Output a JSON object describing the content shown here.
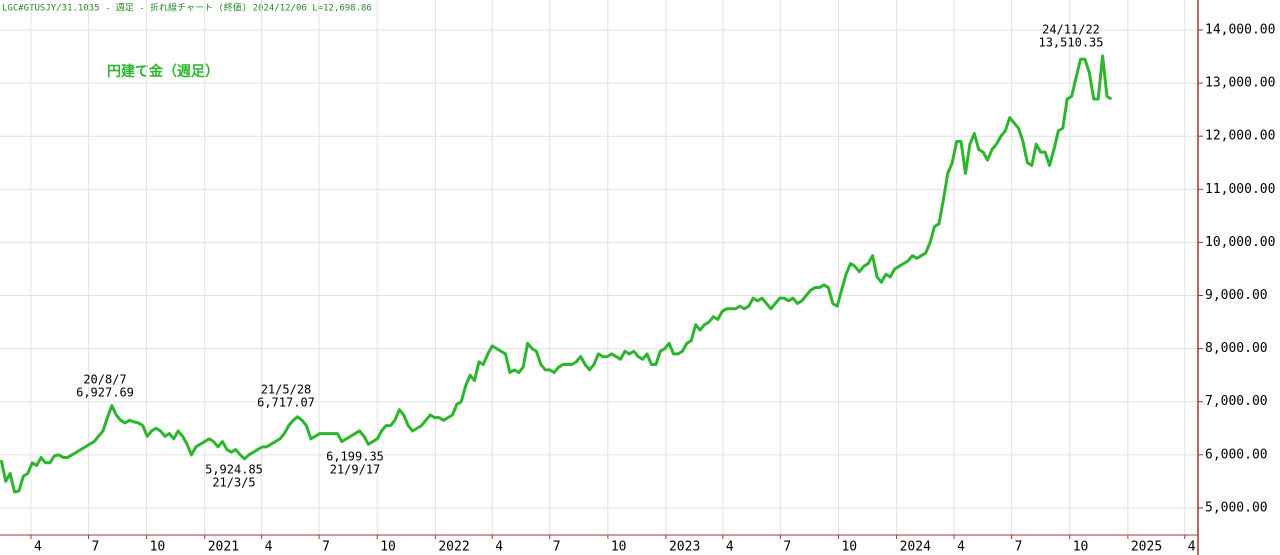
{
  "chart_data": {
    "type": "line",
    "header": "LGC#GTUSJY/31.1035 - 週足 - 折れ線チャート (終値)  2024/12/06 L=12,698.86",
    "title": "円建て金（週足）",
    "annotations": [
      {
        "date": "20/8/7",
        "value": "6,927.69"
      },
      {
        "date": "21/5/28",
        "value": "6,717.07"
      },
      {
        "date": "21/3/5",
        "value": "5,924.85"
      },
      {
        "date": "21/9/17",
        "value": "6,199.35"
      },
      {
        "date": "24/11/22",
        "value": "13,510.35"
      }
    ],
    "x": [
      "2020-02-14",
      "2020-02-21",
      "2020-02-28",
      "2020-03-06",
      "2020-03-13",
      "2020-03-20",
      "2020-03-27",
      "2020-04-03",
      "2020-04-10",
      "2020-04-17",
      "2020-04-24",
      "2020-05-01",
      "2020-05-08",
      "2020-05-15",
      "2020-05-22",
      "2020-05-29",
      "2020-06-05",
      "2020-06-12",
      "2020-06-19",
      "2020-06-26",
      "2020-07-03",
      "2020-07-10",
      "2020-07-17",
      "2020-07-24",
      "2020-07-31",
      "2020-08-07",
      "2020-08-14",
      "2020-08-21",
      "2020-08-28",
      "2020-09-04",
      "2020-09-11",
      "2020-09-18",
      "2020-09-25",
      "2020-10-02",
      "2020-10-09",
      "2020-10-16",
      "2020-10-23",
      "2020-10-30",
      "2020-11-06",
      "2020-11-13",
      "2020-11-20",
      "2020-11-27",
      "2020-12-04",
      "2020-12-11",
      "2020-12-18",
      "2020-12-25",
      "2021-01-01",
      "2021-01-08",
      "2021-01-15",
      "2021-01-22",
      "2021-01-29",
      "2021-02-05",
      "2021-02-12",
      "2021-02-19",
      "2021-02-26",
      "2021-03-05",
      "2021-03-12",
      "2021-03-19",
      "2021-03-26",
      "2021-04-02",
      "2021-04-09",
      "2021-04-16",
      "2021-04-23",
      "2021-04-30",
      "2021-05-07",
      "2021-05-14",
      "2021-05-21",
      "2021-05-28",
      "2021-06-04",
      "2021-06-11",
      "2021-06-18",
      "2021-06-25",
      "2021-07-02",
      "2021-07-09",
      "2021-07-16",
      "2021-07-23",
      "2021-07-30",
      "2021-08-06",
      "2021-08-13",
      "2021-08-20",
      "2021-08-27",
      "2021-09-03",
      "2021-09-10",
      "2021-09-17",
      "2021-09-24",
      "2021-10-01",
      "2021-10-08",
      "2021-10-15",
      "2021-10-22",
      "2021-10-29",
      "2021-11-05",
      "2021-11-12",
      "2021-11-19",
      "2021-11-26",
      "2021-12-03",
      "2021-12-10",
      "2021-12-17",
      "2021-12-24",
      "2021-12-31",
      "2022-01-07",
      "2022-01-14",
      "2022-01-21",
      "2022-01-28",
      "2022-02-04",
      "2022-02-11",
      "2022-02-18",
      "2022-02-25",
      "2022-03-04",
      "2022-03-11",
      "2022-03-18",
      "2022-03-25",
      "2022-04-01",
      "2022-04-08",
      "2022-04-15",
      "2022-04-22",
      "2022-04-29",
      "2022-05-06",
      "2022-05-13",
      "2022-05-20",
      "2022-05-27",
      "2022-06-03",
      "2022-06-10",
      "2022-06-17",
      "2022-06-24",
      "2022-07-01",
      "2022-07-08",
      "2022-07-15",
      "2022-07-22",
      "2022-07-29",
      "2022-08-05",
      "2022-08-12",
      "2022-08-19",
      "2022-08-26",
      "2022-09-02",
      "2022-09-09",
      "2022-09-16",
      "2022-09-23",
      "2022-09-30",
      "2022-10-07",
      "2022-10-14",
      "2022-10-21",
      "2022-10-28",
      "2022-11-04",
      "2022-11-11",
      "2022-11-18",
      "2022-11-25",
      "2022-12-02",
      "2022-12-09",
      "2022-12-16",
      "2022-12-23",
      "2022-12-30",
      "2023-01-06",
      "2023-01-13",
      "2023-01-20",
      "2023-01-27",
      "2023-02-03",
      "2023-02-10",
      "2023-02-17",
      "2023-02-24",
      "2023-03-03",
      "2023-03-10",
      "2023-03-17",
      "2023-03-24",
      "2023-03-31",
      "2023-04-07",
      "2023-04-14",
      "2023-04-21",
      "2023-04-28",
      "2023-05-05",
      "2023-05-12",
      "2023-05-19",
      "2023-05-26",
      "2023-06-02",
      "2023-06-09",
      "2023-06-16",
      "2023-06-23",
      "2023-06-30",
      "2023-07-07",
      "2023-07-14",
      "2023-07-21",
      "2023-07-28",
      "2023-08-04",
      "2023-08-11",
      "2023-08-18",
      "2023-08-25",
      "2023-09-01",
      "2023-09-08",
      "2023-09-15",
      "2023-09-22",
      "2023-09-29",
      "2023-10-06",
      "2023-10-13",
      "2023-10-20",
      "2023-10-27",
      "2023-11-03",
      "2023-11-10",
      "2023-11-17",
      "2023-11-24",
      "2023-12-01",
      "2023-12-08",
      "2023-12-15",
      "2023-12-22",
      "2023-12-29",
      "2024-01-05",
      "2024-01-12",
      "2024-01-19",
      "2024-01-26",
      "2024-02-02",
      "2024-02-09",
      "2024-02-16",
      "2024-02-23",
      "2024-03-01",
      "2024-03-08",
      "2024-03-15",
      "2024-03-22",
      "2024-03-29",
      "2024-04-05",
      "2024-04-12",
      "2024-04-19",
      "2024-04-26",
      "2024-05-03",
      "2024-05-10",
      "2024-05-17",
      "2024-05-24",
      "2024-05-31",
      "2024-06-07",
      "2024-06-14",
      "2024-06-21",
      "2024-06-28",
      "2024-07-05",
      "2024-07-12",
      "2024-07-19",
      "2024-07-26",
      "2024-08-02",
      "2024-08-09",
      "2024-08-16",
      "2024-08-23",
      "2024-08-30",
      "2024-09-06",
      "2024-09-13",
      "2024-09-20",
      "2024-09-27",
      "2024-10-04",
      "2024-10-11",
      "2024-10-18",
      "2024-10-25",
      "2024-11-01",
      "2024-11-08",
      "2024-11-15",
      "2024-11-22",
      "2024-11-29",
      "2024-12-06"
    ],
    "series": [
      {
        "name": "円建て金",
        "color": "#2db52d",
        "values": [
          5900,
          5500,
          5650,
          5300,
          5320,
          5600,
          5650,
          5850,
          5800,
          5950,
          5850,
          5850,
          5980,
          6000,
          5950,
          5950,
          6000,
          6050,
          6100,
          6150,
          6200,
          6250,
          6350,
          6450,
          6700,
          6927.69,
          6750,
          6650,
          6600,
          6650,
          6620,
          6600,
          6550,
          6350,
          6450,
          6500,
          6450,
          6350,
          6400,
          6300,
          6450,
          6350,
          6200,
          6000,
          6150,
          6200,
          6250,
          6300,
          6250,
          6150,
          6250,
          6100,
          6050,
          6100,
          6000,
          5924.85,
          6000,
          6050,
          6100,
          6150,
          6150,
          6200,
          6250,
          6300,
          6400,
          6550,
          6650,
          6717.07,
          6650,
          6550,
          6300,
          6350,
          6400,
          6400,
          6400,
          6400,
          6400,
          6250,
          6300,
          6350,
          6400,
          6450,
          6350,
          6199.35,
          6250,
          6300,
          6450,
          6550,
          6550,
          6650,
          6850,
          6750,
          6550,
          6450,
          6500,
          6550,
          6650,
          6750,
          6700,
          6700,
          6650,
          6700,
          6750,
          6950,
          7000,
          7300,
          7500,
          7400,
          7750,
          7700,
          7900,
          8050,
          8000,
          7950,
          7900,
          7550,
          7600,
          7550,
          7650,
          8100,
          8000,
          7950,
          7700,
          7600,
          7600,
          7550,
          7650,
          7700,
          7700,
          7700,
          7750,
          7850,
          7700,
          7600,
          7700,
          7900,
          7850,
          7850,
          7900,
          7850,
          7800,
          7950,
          7900,
          7950,
          7850,
          7800,
          7900,
          7700,
          7700,
          7950,
          8000,
          8100,
          7900,
          7900,
          7950,
          8100,
          8150,
          8450,
          8350,
          8450,
          8500,
          8600,
          8550,
          8700,
          8750,
          8750,
          8750,
          8800,
          8750,
          8800,
          8950,
          8900,
          8950,
          8850,
          8750,
          8850,
          8950,
          8950,
          8900,
          8950,
          8850,
          8900,
          9000,
          9100,
          9150,
          9150,
          9200,
          9150,
          8850,
          8800,
          9100,
          9400,
          9600,
          9550,
          9450,
          9550,
          9600,
          9750,
          9350,
          9250,
          9400,
          9350,
          9500,
          9550,
          9600,
          9650,
          9750,
          9700,
          9750,
          9800,
          10000,
          10300,
          10350,
          10800,
          11300,
          11500,
          11900,
          11900,
          11300,
          11850,
          12050,
          11750,
          11700,
          11550,
          11750,
          11850,
          12000,
          12100,
          12350,
          12250,
          12150,
          11900,
          11500,
          11450,
          11850,
          11700,
          11700,
          11450,
          11750,
          12100,
          12150,
          12700,
          12750,
          13100,
          13450,
          13450,
          13200,
          12700,
          12700,
          13510.35,
          12750,
          12698.86
        ]
      }
    ],
    "xlim": [
      "2020-02-12",
      "2025-04-22"
    ],
    "xticks": [
      {
        "value": "2020-04-01",
        "label": "4"
      },
      {
        "value": "2020-07-01",
        "label": "7"
      },
      {
        "value": "2020-10-01",
        "label": "10"
      },
      {
        "value": "2021-01-01",
        "label": "2021"
      },
      {
        "value": "2021-04-01",
        "label": "4"
      },
      {
        "value": "2021-07-01",
        "label": "7"
      },
      {
        "value": "2021-10-01",
        "label": "10"
      },
      {
        "value": "2022-01-01",
        "label": "2022"
      },
      {
        "value": "2022-04-01",
        "label": "4"
      },
      {
        "value": "2022-07-01",
        "label": "7"
      },
      {
        "value": "2022-10-01",
        "label": "10"
      },
      {
        "value": "2023-01-01",
        "label": "2023"
      },
      {
        "value": "2023-04-01",
        "label": "4"
      },
      {
        "value": "2023-07-01",
        "label": "7"
      },
      {
        "value": "2023-10-01",
        "label": "10"
      },
      {
        "value": "2024-01-01",
        "label": "2024"
      },
      {
        "value": "2024-04-01",
        "label": "4"
      },
      {
        "value": "2024-07-01",
        "label": "7"
      },
      {
        "value": "2024-10-01",
        "label": "10"
      },
      {
        "value": "2025-01-01",
        "label": "2025"
      },
      {
        "value": "2025-04-01",
        "label": "4"
      }
    ],
    "ylim": [
      4490,
      14565
    ],
    "yticks": [
      {
        "value": 14000,
        "label": "14,000.00"
      },
      {
        "value": 13000,
        "label": "13,000.00"
      },
      {
        "value": 12000,
        "label": "12,000.00"
      },
      {
        "value": 11000,
        "label": "11,000.00"
      },
      {
        "value": 10000,
        "label": "10,000.00"
      },
      {
        "value": 9000,
        "label": "9,000.00"
      },
      {
        "value": 8000,
        "label": "8,000.00"
      },
      {
        "value": 7000,
        "label": "7,000.00"
      },
      {
        "value": 6000,
        "label": "6,000.00"
      },
      {
        "value": 5000,
        "label": "5,000.00"
      }
    ],
    "grid": true
  }
}
